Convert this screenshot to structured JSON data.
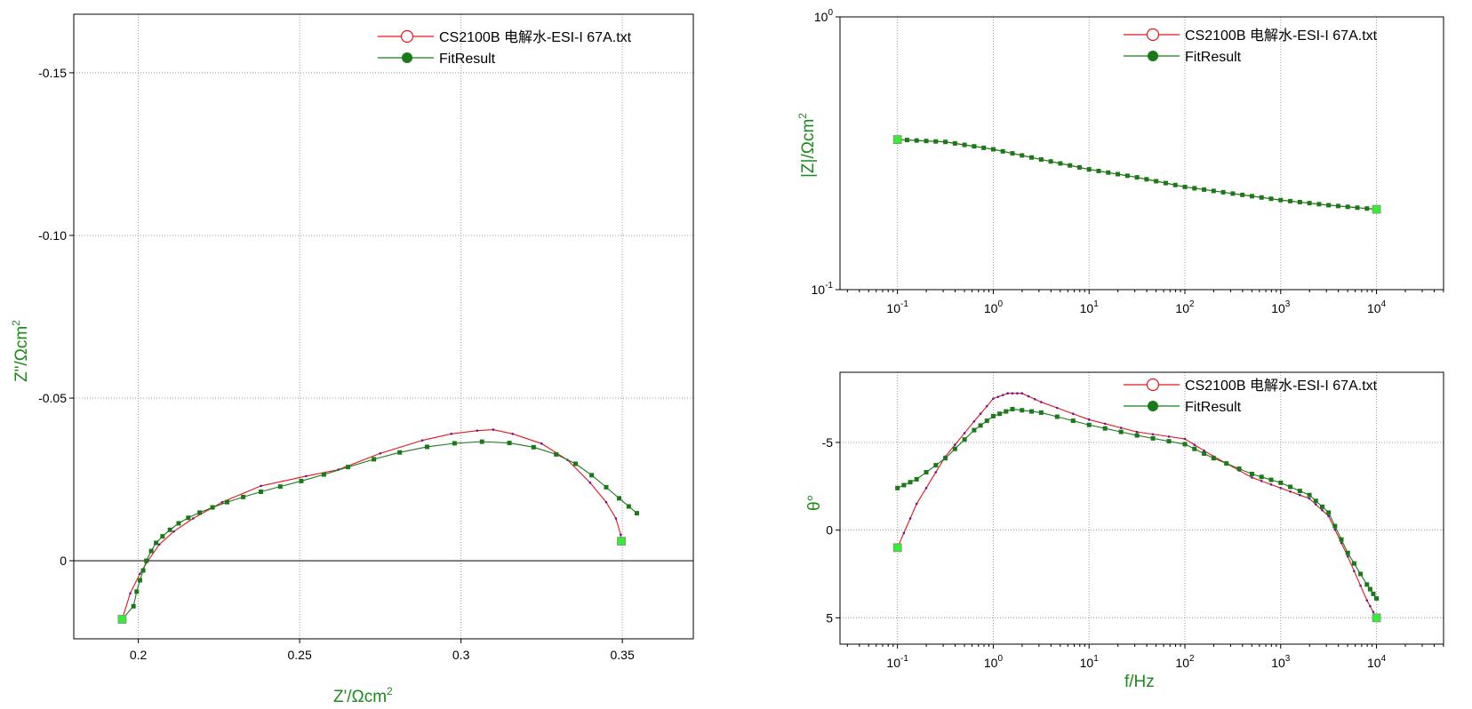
{
  "colors": {
    "data": "#e8141c",
    "fit": "#1a7a1a",
    "endpoint": "#33ee33",
    "label": "#1a8a1a"
  },
  "legend": {
    "data_label": "CS2100B 电解水-ESI-I 67A.txt",
    "fit_label": "FitResult"
  },
  "chart_data": [
    {
      "id": "nyquist",
      "type": "line",
      "xlabel_main": "Z'/Ωcm",
      "xlabel_sup": "2",
      "ylabel_main": "Z\"/Ωcm",
      "ylabel_sup": "2",
      "xlim": [
        0.18,
        0.372
      ],
      "ylim": [
        0.024,
        -0.168
      ],
      "x_ticks": [
        {
          "v": 0.2,
          "label": "0.2"
        },
        {
          "v": 0.25,
          "label": "0.25"
        },
        {
          "v": 0.3,
          "label": "0.3"
        },
        {
          "v": 0.35,
          "label": "0.35"
        }
      ],
      "y_ticks": [
        {
          "v": -0.15,
          "label": "-0.15"
        },
        {
          "v": -0.1,
          "label": "-0.10"
        },
        {
          "v": -0.05,
          "label": "-0.05"
        },
        {
          "v": 0,
          "label": "0"
        }
      ],
      "zero_line": 0,
      "series": [
        {
          "name": "CS2100B 电解水-ESI-I 67A.txt",
          "role": "data",
          "points": [
            [
              0.195,
              0.018
            ],
            [
              0.1975,
              0.01
            ],
            [
              0.2005,
              0.004
            ],
            [
              0.203,
              0.0
            ],
            [
              0.2065,
              -0.005
            ],
            [
              0.211,
              -0.009
            ],
            [
              0.217,
              -0.013
            ],
            [
              0.226,
              -0.018
            ],
            [
              0.238,
              -0.023
            ],
            [
              0.252,
              -0.026
            ],
            [
              0.262,
              -0.028
            ],
            [
              0.275,
              -0.033
            ],
            [
              0.288,
              -0.037
            ],
            [
              0.297,
              -0.039
            ],
            [
              0.305,
              -0.04
            ],
            [
              0.31,
              -0.0403
            ],
            [
              0.316,
              -0.039
            ],
            [
              0.325,
              -0.036
            ],
            [
              0.333,
              -0.031
            ],
            [
              0.34,
              -0.024
            ],
            [
              0.345,
              -0.018
            ],
            [
              0.348,
              -0.013
            ],
            [
              0.3495,
              -0.008
            ],
            [
              0.3497,
              -0.006
            ]
          ]
        },
        {
          "name": "FitResult",
          "role": "fit",
          "points": [
            [
              0.195,
              0.018
            ],
            [
              0.1985,
              0.014
            ],
            [
              0.1995,
              0.0095
            ],
            [
              0.2005,
              0.006
            ],
            [
              0.2015,
              0.003
            ],
            [
              0.2025,
              0.0
            ],
            [
              0.204,
              -0.003
            ],
            [
              0.2055,
              -0.0055
            ],
            [
              0.2075,
              -0.0075
            ],
            [
              0.2098,
              -0.0095
            ],
            [
              0.2125,
              -0.0115
            ],
            [
              0.2155,
              -0.0132
            ],
            [
              0.219,
              -0.0148
            ],
            [
              0.223,
              -0.0164
            ],
            [
              0.2275,
              -0.018
            ],
            [
              0.2325,
              -0.0196
            ],
            [
              0.238,
              -0.0212
            ],
            [
              0.244,
              -0.0228
            ],
            [
              0.2505,
              -0.0245
            ],
            [
              0.2575,
              -0.0265
            ],
            [
              0.265,
              -0.0288
            ],
            [
              0.273,
              -0.0312
            ],
            [
              0.281,
              -0.0333
            ],
            [
              0.2895,
              -0.035
            ],
            [
              0.298,
              -0.0361
            ],
            [
              0.3065,
              -0.0366
            ],
            [
              0.315,
              -0.0362
            ],
            [
              0.3225,
              -0.0349
            ],
            [
              0.3295,
              -0.0327
            ],
            [
              0.3355,
              -0.0298
            ],
            [
              0.3405,
              -0.0263
            ],
            [
              0.345,
              -0.0226
            ],
            [
              0.349,
              -0.0192
            ],
            [
              0.352,
              -0.0167
            ],
            [
              0.3545,
              -0.0146
            ]
          ]
        }
      ],
      "endpoints": [
        [
          0.195,
          0.018
        ],
        [
          0.3497,
          -0.006
        ]
      ]
    },
    {
      "id": "bode-magnitude",
      "type": "line",
      "scale": "log-log",
      "xlabel_main": "",
      "ylabel_main": "|Z|/Ωcm",
      "ylabel_sup": "2",
      "xlim_exp": [
        -1.6,
        4.7
      ],
      "ylim_exp": [
        -1,
        0
      ],
      "x_ticks": [
        {
          "e": -1,
          "base": "10",
          "exp": "-1"
        },
        {
          "e": 0,
          "base": "10",
          "exp": "0"
        },
        {
          "e": 1,
          "base": "10",
          "exp": "1"
        },
        {
          "e": 2,
          "base": "10",
          "exp": "2"
        },
        {
          "e": 3,
          "base": "10",
          "exp": "3"
        },
        {
          "e": 4,
          "base": "10",
          "exp": "4"
        }
      ],
      "y_ticks": [
        {
          "e": -1,
          "base": "10",
          "exp": "-1"
        },
        {
          "e": 0,
          "base": "10",
          "exp": "0"
        }
      ],
      "series": [
        {
          "name": "CS2100B 电解水-ESI-I 67A.txt",
          "role": "data",
          "points": [
            [
              -1,
              0.355
            ],
            [
              -0.5,
              0.348
            ],
            [
              0,
              0.327
            ],
            [
              0.5,
              0.3
            ],
            [
              1,
              0.276
            ],
            [
              1.5,
              0.258
            ],
            [
              2,
              0.238
            ],
            [
              2.5,
              0.225
            ],
            [
              3,
              0.213
            ],
            [
              3.5,
              0.204
            ],
            [
              4,
              0.197
            ]
          ]
        },
        {
          "name": "FitResult",
          "role": "fit",
          "points": [
            [
              -1,
              0.355
            ],
            [
              -0.5,
              0.348
            ],
            [
              0,
              0.327
            ],
            [
              0.5,
              0.3
            ],
            [
              1,
              0.276
            ],
            [
              1.5,
              0.258
            ],
            [
              2,
              0.238
            ],
            [
              2.5,
              0.225
            ],
            [
              3,
              0.213
            ],
            [
              3.5,
              0.204
            ],
            [
              4,
              0.197
            ]
          ]
        }
      ],
      "endpoints": [
        [
          -1,
          0.355
        ],
        [
          4,
          0.197
        ]
      ]
    },
    {
      "id": "bode-phase",
      "type": "line",
      "scale": "log-x",
      "xlabel_main": "f/Hz",
      "ylabel_main": "θ°",
      "xlim_exp": [
        -1.6,
        4.7
      ],
      "ylim": [
        6.5,
        -9.0
      ],
      "y_ticks": [
        {
          "v": -5,
          "label": "-5"
        },
        {
          "v": 0,
          "label": "0"
        },
        {
          "v": 5,
          "label": "5"
        }
      ],
      "x_ticks": [
        {
          "e": -1,
          "base": "10",
          "exp": "-1"
        },
        {
          "e": 0,
          "base": "10",
          "exp": "0"
        },
        {
          "e": 1,
          "base": "10",
          "exp": "1"
        },
        {
          "e": 2,
          "base": "10",
          "exp": "2"
        },
        {
          "e": 3,
          "base": "10",
          "exp": "3"
        },
        {
          "e": 4,
          "base": "10",
          "exp": "4"
        }
      ],
      "series": [
        {
          "name": "CS2100B 电解水-ESI-I 67A.txt",
          "role": "data",
          "points": [
            [
              -1,
              1.0
            ],
            [
              -0.8,
              -1.5
            ],
            [
              -0.5,
              -4.2
            ],
            [
              -0.2,
              -6.2
            ],
            [
              0,
              -7.5
            ],
            [
              0.15,
              -7.8
            ],
            [
              0.3,
              -7.8
            ],
            [
              0.5,
              -7.3
            ],
            [
              1,
              -6.3
            ],
            [
              1.5,
              -5.6
            ],
            [
              2,
              -5.2
            ],
            [
              2.3,
              -4.2
            ],
            [
              2.7,
              -3.0
            ],
            [
              3,
              -2.4
            ],
            [
              3.3,
              -1.8
            ],
            [
              3.5,
              -0.8
            ],
            [
              3.7,
              1.5
            ],
            [
              3.9,
              4.0
            ],
            [
              4,
              5.0
            ]
          ]
        },
        {
          "name": "FitResult",
          "role": "fit",
          "points": [
            [
              -1,
              -2.4
            ],
            [
              -0.8,
              -2.9
            ],
            [
              -0.5,
              -4.1
            ],
            [
              -0.2,
              -5.7
            ],
            [
              0,
              -6.5
            ],
            [
              0.2,
              -6.9
            ],
            [
              0.5,
              -6.7
            ],
            [
              1,
              -6.0
            ],
            [
              1.5,
              -5.4
            ],
            [
              2,
              -4.9
            ],
            [
              2.3,
              -4.1
            ],
            [
              2.7,
              -3.2
            ],
            [
              3,
              -2.7
            ],
            [
              3.3,
              -2.0
            ],
            [
              3.5,
              -1.0
            ],
            [
              3.7,
              1.3
            ],
            [
              3.9,
              3.1
            ],
            [
              4,
              3.9
            ]
          ]
        }
      ],
      "endpoints": [
        [
          -1,
          1.0
        ],
        [
          4,
          5.0
        ]
      ]
    }
  ]
}
